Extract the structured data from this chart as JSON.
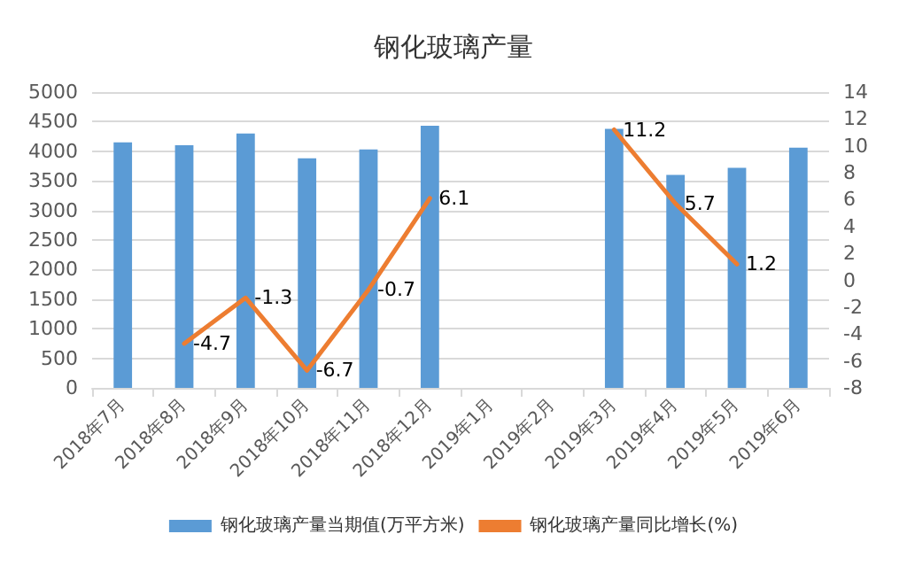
{
  "chart_data": {
    "type": "bar",
    "title": "钢化玻璃产量",
    "categories": [
      "2018年7月",
      "2018年8月",
      "2018年9月",
      "2018年10月",
      "2018年11月",
      "2018年12月",
      "2019年1月",
      "2019年2月",
      "2019年3月",
      "2019年4月",
      "2019年5月",
      "2019年6月"
    ],
    "series": [
      {
        "name": "钢化玻璃产量当期值(万平方米)",
        "color": "#5b9bd5",
        "values": [
          4150,
          4100,
          4300,
          3880,
          4030,
          4430,
          null,
          null,
          4380,
          3600,
          3720,
          4060
        ]
      },
      {
        "name": "钢化玻璃产量同比增长(%)",
        "type": "line",
        "axis": "y2",
        "color": "#ed7d31",
        "values": [
          null,
          -4.7,
          -1.3,
          -6.7,
          -0.7,
          6.1,
          null,
          null,
          11.2,
          5.7,
          1.2,
          null
        ],
        "value_labels": [
          null,
          "-4.7",
          "-1.3",
          "-6.7",
          "-0.7",
          "6.1",
          null,
          null,
          "11.2",
          "5.7",
          "1.2",
          null
        ]
      }
    ],
    "ylim": [
      0,
      5000
    ],
    "yticks": [
      0,
      500,
      1000,
      1500,
      2000,
      2500,
      3000,
      3500,
      4000,
      4500,
      5000
    ],
    "y2lim": [
      -8,
      14
    ],
    "y2ticks": [
      -8,
      -6,
      -4,
      -2,
      0,
      2,
      4,
      6,
      8,
      10,
      12,
      14
    ],
    "grid": "y",
    "legend": "bottom",
    "marker": "none",
    "line_style": "solid"
  }
}
